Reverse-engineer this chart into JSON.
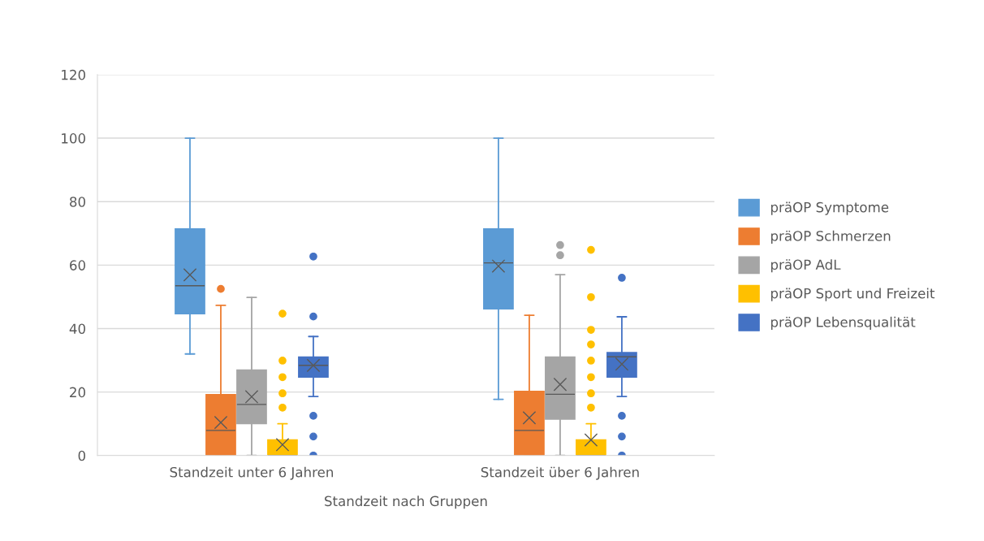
{
  "chart_data": {
    "type": "box",
    "xlabel": "Standzeit nach Gruppen",
    "categories": [
      "Standzeit unter 6 Jahren",
      "Standzeit über 6 Jahren"
    ],
    "ylim": [
      0,
      120
    ],
    "yticks": [
      0,
      20,
      40,
      60,
      80,
      100,
      120
    ],
    "grid": "y",
    "legend": "right",
    "series": [
      {
        "name": "präOP Symptome",
        "color": "#5b9bd5",
        "boxes": [
          {
            "low": 32.0,
            "q1": 44.7,
            "median": 53.5,
            "q3": 71.4,
            "high": 100,
            "mean": 56.9
          },
          {
            "low": 17.7,
            "q1": 46.2,
            "median": 60.7,
            "q3": 71.4,
            "high": 100,
            "mean": 59.7
          }
        ]
      },
      {
        "name": "präOP Schmerzen",
        "color": "#ed7d31",
        "boxes": [
          {
            "low": 0,
            "q1": 0,
            "median": 7.9,
            "q3": 19.2,
            "high": 47.3,
            "mean": 10.4,
            "outliers": [
              52.5
            ]
          },
          {
            "low": 0,
            "q1": 0,
            "median": 7.9,
            "q3": 20.2,
            "high": 44.2,
            "mean": 11.9
          }
        ]
      },
      {
        "name": "präOP AdL",
        "color": "#a5a5a5",
        "boxes": [
          {
            "low": 0,
            "q1": 10.1,
            "median": 16.1,
            "q3": 26.9,
            "high": 49.8,
            "mean": 18.5
          },
          {
            "low": 0,
            "q1": 11.5,
            "median": 19.3,
            "q3": 31.0,
            "high": 57.0,
            "mean": 22.4,
            "outliers": [
              63.1,
              66.3
            ]
          }
        ]
      },
      {
        "name": "präOP Sport und Freizeit",
        "color": "#ffc000",
        "boxes": [
          {
            "low": 0,
            "q1": 0,
            "median": 0,
            "q3": 4.9,
            "high": 10.0,
            "mean": 3.4,
            "outliers": [
              15.1,
              19.6,
              24.7,
              29.9,
              44.7
            ]
          },
          {
            "low": 0,
            "q1": 0,
            "median": 0,
            "q3": 4.9,
            "high": 10.0,
            "mean": 4.9,
            "outliers": [
              15.1,
              19.6,
              24.7,
              29.9,
              35.0,
              39.6,
              49.9,
              64.8
            ]
          }
        ]
      },
      {
        "name": "präOP Lebensqualität",
        "color": "#4472c4",
        "boxes": [
          {
            "low": 18.6,
            "q1": 24.7,
            "median": 28.4,
            "q3": 31.0,
            "high": 37.5,
            "mean": 28.4,
            "outliers": [
              0,
              6.0,
              12.5,
              43.8,
              62.7
            ]
          },
          {
            "low": 18.6,
            "q1": 24.7,
            "median": 31.1,
            "q3": 32.4,
            "high": 43.7,
            "mean": 28.8,
            "outliers": [
              0,
              6.0,
              12.5,
              56.0
            ]
          }
        ]
      }
    ]
  }
}
